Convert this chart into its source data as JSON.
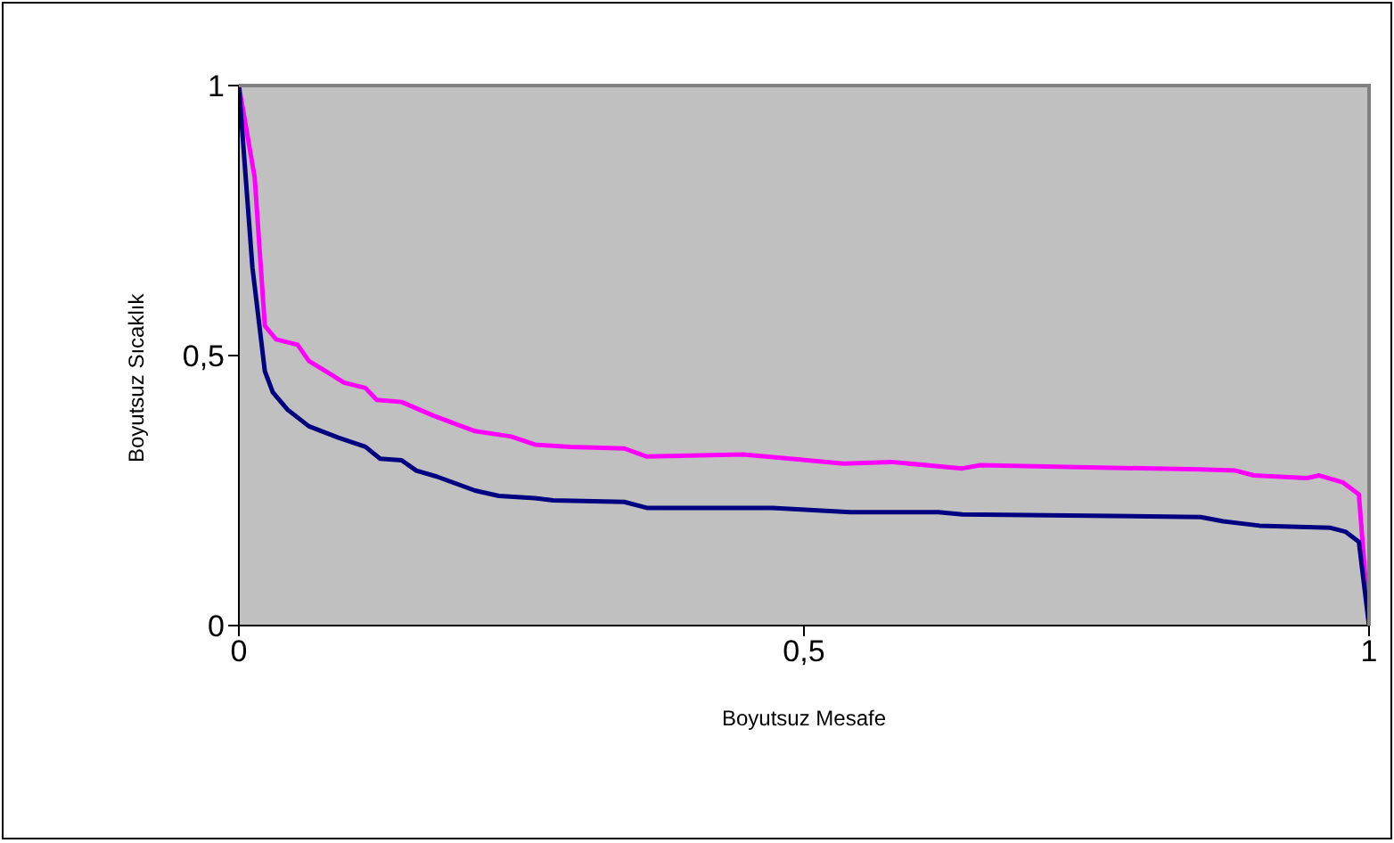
{
  "chart_data": {
    "type": "line",
    "xlabel": "Boyutsuz Mesafe",
    "ylabel": "Boyutsuz Sıcaklık",
    "xlim": [
      0,
      1
    ],
    "ylim": [
      0,
      1
    ],
    "xticks": [
      0,
      {
        "value": 0.5,
        "label": "0,5"
      },
      1
    ],
    "yticks": [
      0,
      {
        "value": 0.5,
        "label": "0,5"
      },
      1
    ],
    "grid": false,
    "marker": "none",
    "line_style": "solid",
    "series": [
      {
        "color": "#ff00ff",
        "x": [
          0,
          0.014,
          0.023,
          0.033,
          0.052,
          0.062,
          0.083,
          0.093,
          0.112,
          0.122,
          0.144,
          0.173,
          0.209,
          0.241,
          0.262,
          0.293,
          0.341,
          0.361,
          0.446,
          0.488,
          0.535,
          0.577,
          0.64,
          0.656,
          0.851,
          0.882,
          0.898,
          0.945,
          0.956,
          0.977,
          0.991,
          1
        ],
        "values": [
          1,
          0.83,
          0.555,
          0.53,
          0.52,
          0.49,
          0.463,
          0.45,
          0.44,
          0.418,
          0.414,
          0.388,
          0.36,
          0.35,
          0.335,
          0.331,
          0.328,
          0.313,
          0.317,
          0.309,
          0.3,
          0.303,
          0.291,
          0.297,
          0.289,
          0.287,
          0.278,
          0.273,
          0.278,
          0.265,
          0.243,
          0
        ]
      },
      {
        "color": "#000080",
        "x": [
          0,
          0.012,
          0.023,
          0.03,
          0.043,
          0.062,
          0.088,
          0.112,
          0.125,
          0.144,
          0.157,
          0.175,
          0.209,
          0.23,
          0.262,
          0.278,
          0.341,
          0.361,
          0.472,
          0.541,
          0.619,
          0.64,
          0.851,
          0.871,
          0.903,
          0.966,
          0.979,
          0.991,
          1
        ],
        "values": [
          1,
          0.663,
          0.471,
          0.432,
          0.4,
          0.369,
          0.348,
          0.331,
          0.309,
          0.306,
          0.287,
          0.276,
          0.25,
          0.24,
          0.236,
          0.232,
          0.229,
          0.218,
          0.218,
          0.21,
          0.21,
          0.206,
          0.201,
          0.193,
          0.185,
          0.181,
          0.174,
          0.155,
          0
        ]
      }
    ]
  }
}
